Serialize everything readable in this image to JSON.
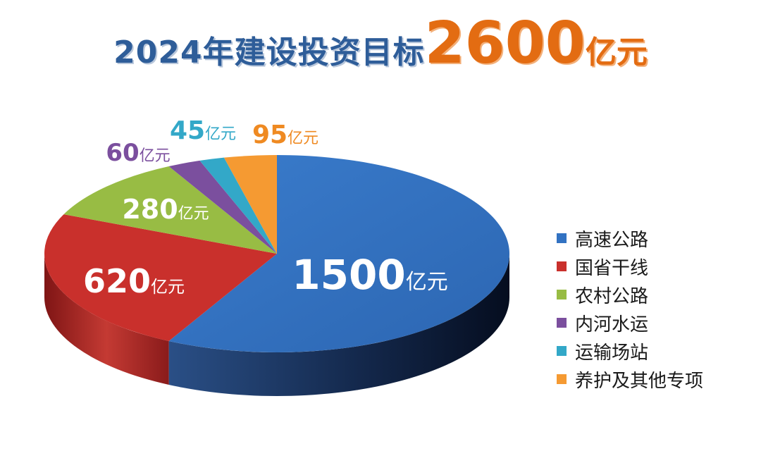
{
  "title": {
    "main": "2024年建设投资目标",
    "total": "2600",
    "unit": "亿元"
  },
  "chart_data": {
    "type": "pie",
    "title": "2024年建设投资目标2600亿元",
    "unit": "亿元",
    "legend_position": "right",
    "slices": [
      {
        "name": "高速公路",
        "value": 1500,
        "label": "1500",
        "color": "#3272c2"
      },
      {
        "name": "国省干线",
        "value": 620,
        "label": "620",
        "color": "#c9302c"
      },
      {
        "name": "农村公路",
        "value": 280,
        "label": "280",
        "color": "#98bc44"
      },
      {
        "name": "内河水运",
        "value": 60,
        "label": "60",
        "color": "#7b4f9e"
      },
      {
        "name": "运输场站",
        "value": 45,
        "label": "45",
        "color": "#33a8c8"
      },
      {
        "name": "养护及其他专项",
        "value": 95,
        "label": "95",
        "color": "#f59a32"
      }
    ]
  }
}
